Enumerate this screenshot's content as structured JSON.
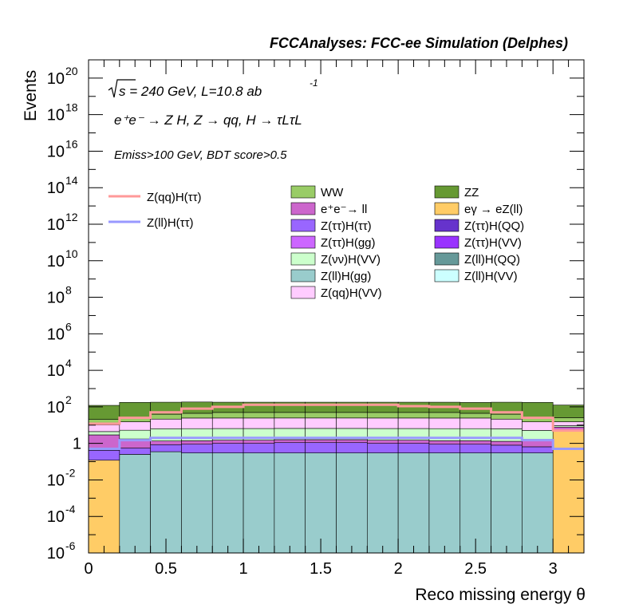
{
  "chart_data": {
    "type": "histogram",
    "title": "FCCAnalyses: FCC-ee Simulation (Delphes)",
    "xlabel": "Reco missing energy θ",
    "ylabel": "Events",
    "xlim": [
      0,
      3.2
    ],
    "ylim": [
      1e-06,
      1e+21
    ],
    "yscale": "log",
    "x_ticks": [
      "0",
      "0.5",
      "1",
      "1.5",
      "2",
      "2.5",
      "3"
    ],
    "y_ticks": [
      {
        "base": "10",
        "exp": "-6"
      },
      {
        "base": "10",
        "exp": "-4"
      },
      {
        "base": "10",
        "exp": "-2"
      },
      {
        "base": "1",
        "exp": ""
      },
      {
        "base": "10",
        "exp": "2"
      },
      {
        "base": "10",
        "exp": "4"
      },
      {
        "base": "10",
        "exp": "6"
      },
      {
        "base": "10",
        "exp": "8"
      },
      {
        "base": "10",
        "exp": "10"
      },
      {
        "base": "10",
        "exp": "12"
      },
      {
        "base": "10",
        "exp": "14"
      },
      {
        "base": "10",
        "exp": "16"
      },
      {
        "base": "10",
        "exp": "18"
      },
      {
        "base": "10",
        "exp": "20"
      }
    ],
    "annotations": {
      "energy": "s = 240 GeV, L=10.8 ab",
      "energy_exp": "-1",
      "process": "e⁺e⁻ → Z H, Z → qq, H → τLτL",
      "selection": "Emiss>100 GeV, BDT score>0.5"
    },
    "bin_edges": [
      0,
      0.2,
      0.4,
      0.6,
      0.8,
      1.0,
      1.2,
      1.4,
      1.6,
      1.8,
      2.0,
      2.2,
      2.4,
      2.6,
      2.8,
      3.0,
      3.2
    ],
    "stack_colors": {
      "Z(ll)H(gg)": "#99cccc",
      "eγ → eZ(ll)": "#ffcc66",
      "Z(ττ)H(ττ)": "#9966ff",
      "e⁺e⁻→ ll": "#cc66cc",
      "Z(νν)H(VV)": "#ccffcc",
      "Z(qq)H(VV)": "#ffccff",
      "WW": "#99cc66",
      "ZZ": "#669933"
    },
    "stacked_series": [
      {
        "name": "eγ → eZ(ll)",
        "values": [
          0.12,
          0,
          0,
          0,
          0,
          0,
          0,
          0,
          0,
          0,
          0,
          0,
          0,
          0,
          0,
          5
        ]
      },
      {
        "name": "Z(ll)H(gg)",
        "values": [
          0,
          0.25,
          0.35,
          0.3,
          0.3,
          0.3,
          0.3,
          0.3,
          0.3,
          0.3,
          0.3,
          0.3,
          0.3,
          0.3,
          0.3,
          0
        ]
      },
      {
        "name": "Z(ττ)H(ττ)",
        "values": [
          0.3,
          0.3,
          0.5,
          0.6,
          0.7,
          0.7,
          0.8,
          0.8,
          0.8,
          0.7,
          0.7,
          0.6,
          0.6,
          0.5,
          0.35,
          0.3
        ]
      },
      {
        "name": "e⁺e⁻→ ll",
        "values": [
          2.5,
          1.2,
          0.5,
          0.5,
          0.5,
          0.5,
          0.5,
          0.5,
          0.5,
          0.5,
          0.5,
          0.5,
          0.5,
          0.5,
          1.0,
          2.5
        ]
      },
      {
        "name": "Z(νν)H(VV)",
        "values": [
          1.5,
          3.5,
          5,
          5,
          5,
          5,
          5,
          5,
          5,
          5,
          5,
          5,
          5,
          5,
          3.5,
          1.5
        ]
      },
      {
        "name": "Z(qq)H(VV)",
        "values": [
          6,
          10,
          15,
          18,
          18,
          18,
          18,
          18,
          18,
          18,
          18,
          18,
          18,
          15,
          10,
          6
        ]
      },
      {
        "name": "WW",
        "values": [
          10,
          10,
          18,
          20,
          25,
          25,
          25,
          25,
          25,
          25,
          25,
          25,
          20,
          18,
          10,
          10
        ]
      },
      {
        "name": "ZZ",
        "values": [
          100,
          150,
          140,
          140,
          130,
          130,
          130,
          130,
          130,
          130,
          130,
          130,
          130,
          140,
          150,
          100
        ]
      }
    ],
    "signal_series": [
      {
        "name": "Z(qq)H(ττ)",
        "color": "#ff9999",
        "values": [
          12,
          25,
          50,
          80,
          100,
          130,
          130,
          130,
          130,
          130,
          110,
          100,
          80,
          50,
          25,
          5
        ]
      },
      {
        "name": "Z(ll)H(ττ)",
        "color": "#9999ff",
        "values": [
          0.5,
          1.5,
          2.0,
          2.0,
          2.0,
          2.0,
          2.0,
          2.0,
          2.0,
          2.0,
          2.0,
          2.0,
          2.0,
          2.0,
          1.5,
          0.5
        ]
      }
    ],
    "legend": {
      "placement": "top-center",
      "signals": [
        {
          "label": "Z(qq)H(ττ)",
          "color": "#ff9999"
        },
        {
          "label": "Z(ll)H(ττ)",
          "color": "#9999ff"
        }
      ],
      "backgrounds": [
        {
          "label": "WW",
          "color": "#99cc66"
        },
        {
          "label": "ZZ",
          "color": "#669933"
        },
        {
          "label": "e⁺e⁻→ ll",
          "color": "#cc66cc"
        },
        {
          "label": "eγ → eZ(ll)",
          "color": "#ffcc66"
        },
        {
          "label": "Z(ττ)H(ττ)",
          "color": "#9966ff"
        },
        {
          "label": "Z(ττ)H(QQ)",
          "color": "#6633cc"
        },
        {
          "label": "Z(ττ)H(gg)",
          "color": "#cc66ff"
        },
        {
          "label": "Z(ττ)H(VV)",
          "color": "#9933ff"
        },
        {
          "label": "Z(νν)H(VV)",
          "color": "#ccffcc"
        },
        {
          "label": "Z(ll)H(QQ)",
          "color": "#669999"
        },
        {
          "label": "Z(ll)H(gg)",
          "color": "#99cccc"
        },
        {
          "label": "Z(ll)H(VV)",
          "color": "#ccffff"
        },
        {
          "label": "Z(qq)H(VV)",
          "color": "#ffccff"
        }
      ]
    }
  }
}
